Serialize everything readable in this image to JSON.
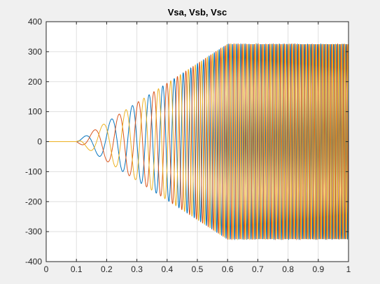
{
  "chart_data": {
    "type": "line",
    "title": "Vsa, Vsb, Vsc",
    "xlabel": "",
    "ylabel": "",
    "xlim": [
      0,
      1
    ],
    "ylim": [
      -400,
      400
    ],
    "xticks": [
      0,
      0.1,
      0.2,
      0.3,
      0.4,
      0.5,
      0.6,
      0.7,
      0.8,
      0.9,
      1
    ],
    "xtick_labels": [
      "0",
      "0.1",
      "0.2",
      "0.3",
      "0.4",
      "0.5",
      "0.6",
      "0.7",
      "0.8",
      "0.9",
      "1"
    ],
    "yticks": [
      400,
      300,
      200,
      100,
      0,
      -100,
      -200,
      -300,
      -400
    ],
    "ytick_labels": [
      "400",
      "300",
      "200",
      "100",
      "0",
      "-100",
      "-200",
      "-300",
      "-400"
    ],
    "grid": true,
    "legend": "none",
    "series": [
      {
        "color": "#0072BD",
        "phase_deg": 0,
        "envelope": {
          "x": [
            0,
            0.1,
            0.6,
            1
          ],
          "amplitude": [
            0,
            0,
            325,
            325
          ]
        },
        "frequency": {
          "x": [
            0.1,
            0.2,
            0.3,
            0.4,
            0.6,
            1
          ],
          "cycles_per_unit": [
            9,
            12,
            17,
            25,
            70,
            100
          ]
        }
      },
      {
        "color": "#D95319",
        "phase_deg": -120,
        "envelope": {
          "x": [
            0,
            0.1,
            0.6,
            1
          ],
          "amplitude": [
            0,
            0,
            325,
            325
          ]
        },
        "frequency": {
          "x": [
            0.1,
            0.2,
            0.3,
            0.4,
            0.6,
            1
          ],
          "cycles_per_unit": [
            9,
            12,
            17,
            25,
            70,
            100
          ]
        }
      },
      {
        "color": "#EDB120",
        "phase_deg": 120,
        "envelope": {
          "x": [
            0,
            0.1,
            0.6,
            1
          ],
          "amplitude": [
            0,
            0,
            325,
            325
          ]
        },
        "frequency": {
          "x": [
            0.1,
            0.2,
            0.3,
            0.4,
            0.6,
            1
          ],
          "cycles_per_unit": [
            9,
            12,
            17,
            25,
            70,
            100
          ]
        }
      }
    ]
  }
}
